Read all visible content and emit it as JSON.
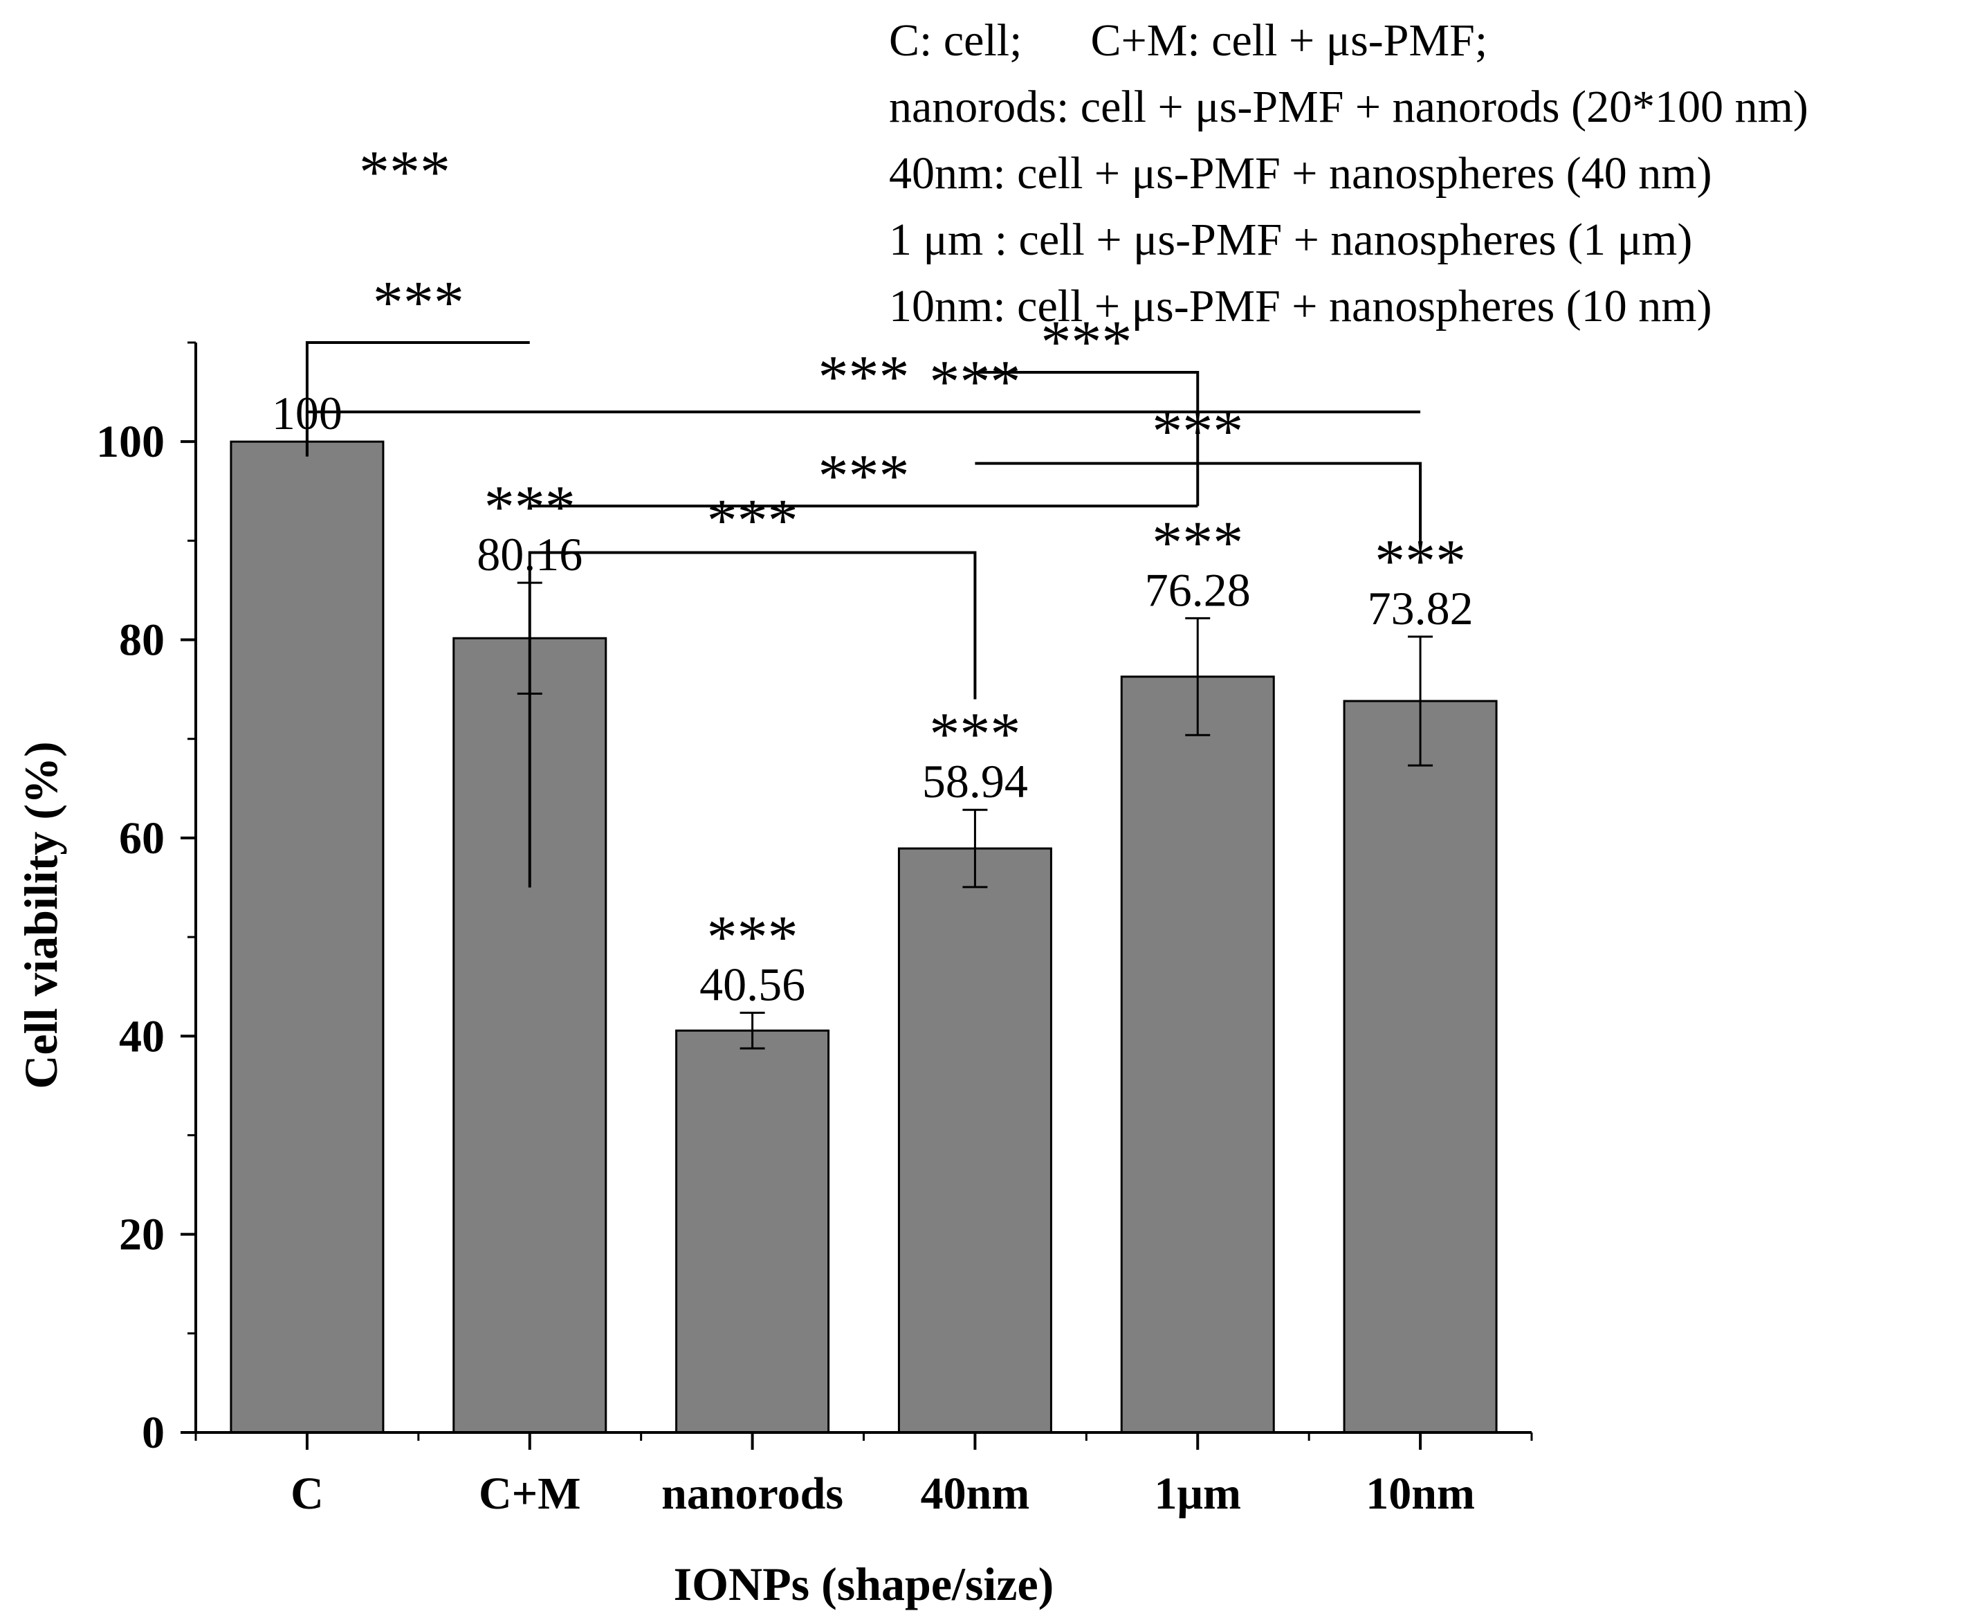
{
  "chart_data": {
    "type": "bar",
    "categories": [
      "C",
      "C+M",
      "nanorods",
      "40nm",
      "1μm",
      "10nm"
    ],
    "values": [
      100,
      80.16,
      40.56,
      58.94,
      76.28,
      73.82
    ],
    "errors": [
      0,
      5.6,
      1.8,
      3.9,
      5.9,
      6.5
    ],
    "value_labels": [
      "100",
      "80.16",
      "40.56",
      "58.94",
      "76.28",
      "73.82"
    ],
    "bar_significance": [
      "",
      "***",
      "***",
      "***",
      "***",
      "***"
    ],
    "xlabel": "IONPs (shape/size)",
    "ylabel": "Cell viability (%)",
    "ylim": [
      0,
      110
    ],
    "yticks": [
      0,
      20,
      40,
      60,
      80,
      100
    ],
    "yticks_minor_step": 10,
    "bar_color": "#808080",
    "grid": false,
    "legend": [
      "C: cell;      C+M: cell + μs-PMF;",
      "nanorods: cell + μs-PMF + nanorods (20*100 nm)",
      "40nm: cell + μs-PMF + nanospheres (40 nm)",
      "1 μm : cell + μs-PMF + nanospheres (1 μm)",
      "10nm: cell + μs-PMF + nanospheres (10 nm)"
    ],
    "legend_position": "top-right",
    "standalone_annotation": "***",
    "comparisons": [
      {
        "from": 1,
        "to": 2,
        "label": "***",
        "bracket_y": 110,
        "left_drop": 98.5,
        "right_drop": 110,
        "label_y": 112
      },
      {
        "from": 1,
        "to": 6,
        "label": "***",
        "bracket_y": 103,
        "left_drop": 98.5,
        "right_drop": 103,
        "label_y": 104.5
      },
      {
        "from": 4,
        "to": 5,
        "label": "***",
        "bracket_y": 107,
        "left_drop": 107,
        "right_drop": 93.5,
        "label_y": 108
      },
      {
        "from": 4,
        "to": 6,
        "label": "***",
        "bracket_y": 97.8,
        "left_drop": 97.8,
        "right_drop": 89.5,
        "label_y": 99
      },
      {
        "from": 2,
        "to": 4,
        "label": "***",
        "bracket_y": 88.8,
        "left_drop": 55,
        "right_drop": 74,
        "label_y": 90
      },
      {
        "from": 2,
        "to": 5,
        "label": "***",
        "bracket_y": 93.5,
        "left_drop": 93.5,
        "right_drop": 93.5,
        "label_y": 94.5
      },
      {
        "from": 4,
        "to": 4,
        "label": "***",
        "bracket_y": 103,
        "left_drop": 103,
        "right_drop": 103,
        "label_y": 104
      }
    ]
  }
}
